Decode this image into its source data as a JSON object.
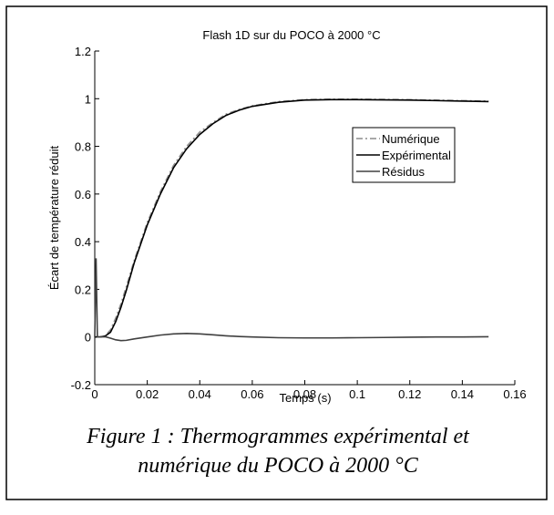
{
  "chart_data": {
    "type": "line",
    "title": "Flash 1D sur du POCO à 2000 °C",
    "xlabel": "Temps (s)",
    "ylabel": "Écart de température réduit",
    "caption": [
      "Figure 1 : Thermogrammes expérimental et",
      "numérique du POCO à 2000 °C"
    ],
    "x": [
      0,
      0.0005,
      0.001,
      0.002,
      0.004,
      0.006,
      0.008,
      0.01,
      0.012,
      0.015,
      0.02,
      0.025,
      0.03,
      0.035,
      0.04,
      0.045,
      0.05,
      0.055,
      0.06,
      0.07,
      0.08,
      0.09,
      0.1,
      0.11,
      0.12,
      0.13,
      0.14,
      0.15
    ],
    "series": [
      {
        "name": "Numérique",
        "color": "#8c8c8c",
        "dash": "7 3 2 3",
        "values": [
          0,
          0,
          0,
          0,
          0.005,
          0.03,
          0.08,
          0.14,
          0.21,
          0.32,
          0.48,
          0.61,
          0.72,
          0.8,
          0.86,
          0.9,
          0.935,
          0.955,
          0.97,
          0.988,
          0.996,
          0.998,
          0.998,
          0.997,
          0.996,
          0.994,
          0.992,
          0.99
        ]
      },
      {
        "name": "Expérimental",
        "color": "#000000",
        "values": [
          0,
          0,
          0,
          0,
          0.004,
          0.02,
          0.065,
          0.125,
          0.195,
          0.31,
          0.47,
          0.6,
          0.71,
          0.79,
          0.85,
          0.895,
          0.93,
          0.952,
          0.968,
          0.985,
          0.994,
          0.996,
          0.996,
          0.995,
          0.994,
          0.992,
          0.99,
          0.988
        ]
      },
      {
        "name": "Résidus",
        "color": "#404040",
        "values": [
          0,
          0.33,
          0,
          0,
          0.001,
          -0.005,
          -0.012,
          -0.015,
          -0.014,
          -0.008,
          0,
          0.008,
          0.013,
          0.015,
          0.013,
          0.009,
          0.005,
          0.002,
          0,
          -0.003,
          -0.004,
          -0.004,
          -0.003,
          -0.002,
          -0.001,
          0,
          0,
          0.001
        ]
      }
    ],
    "xlim": [
      0,
      0.16
    ],
    "xticks": [
      0,
      0.02,
      0.04,
      0.06,
      0.08,
      0.1,
      0.12,
      0.14,
      0.16
    ],
    "ylim": [
      -0.2,
      1.2
    ],
    "yticks": [
      -0.2,
      0,
      0.2,
      0.4,
      0.6,
      0.8,
      1,
      1.2
    ],
    "grid": false,
    "legend_position": "upper right"
  }
}
